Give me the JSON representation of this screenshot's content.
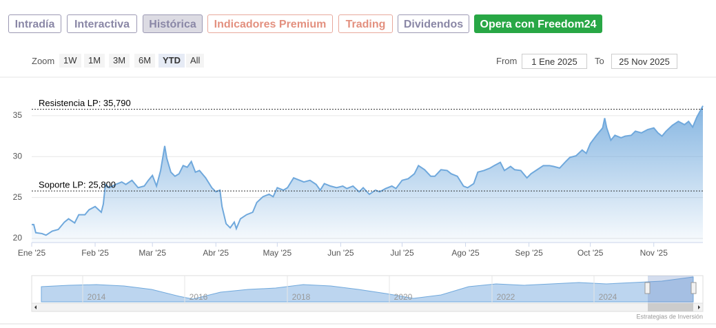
{
  "tabs": [
    "Intradía",
    "Interactiva",
    "Histórica",
    "Indicadores Premium",
    "Trading",
    "Dividendos",
    "Opera con Freedom24"
  ],
  "zoom": {
    "label": "Zoom",
    "buttons": [
      "1W",
      "1M",
      "3M",
      "6M",
      "YTD",
      "All"
    ]
  },
  "range": {
    "from_label": "From",
    "from": "1 Ene 2025",
    "to_label": "To",
    "to": "25 Nov 2025"
  },
  "navigator": {
    "labels": [
      "2014",
      "2016",
      "2018",
      "2020",
      "2022",
      "2024"
    ]
  },
  "credit": "Estrategias de Inversión",
  "chart_data": {
    "type": "area",
    "grid": true,
    "x": [
      0,
      1,
      2,
      5,
      7,
      10,
      13,
      16,
      18,
      21,
      23,
      26,
      28,
      31,
      34,
      35,
      36,
      38,
      41,
      44,
      46,
      49,
      52,
      55,
      57,
      59,
      61,
      63,
      65,
      66,
      68,
      70,
      72,
      74,
      76,
      78,
      80,
      82,
      85,
      88,
      90,
      92,
      93,
      95,
      97,
      99,
      100,
      102,
      105,
      108,
      110,
      113,
      116,
      118,
      120,
      123,
      125,
      128,
      131,
      133,
      136,
      139,
      141,
      143,
      146,
      149,
      152,
      154,
      157,
      160,
      162,
      165,
      168,
      170,
      173,
      176,
      178,
      181,
      184,
      187,
      189,
      192,
      195,
      197,
      200,
      203,
      205,
      208,
      211,
      213,
      216,
      218,
      221,
      224,
      226,
      229,
      231,
      234,
      236,
      239,
      242,
      244,
      247,
      250,
      253,
      255,
      258,
      261,
      263,
      266,
      269,
      271,
      273,
      276,
      279,
      280,
      281,
      283,
      285,
      288,
      290,
      293,
      295,
      298,
      301,
      304,
      306,
      308,
      310,
      313,
      316,
      319,
      321,
      323,
      325,
      328
    ],
    "series": [
      {
        "color": "#6fa8dc",
        "values": [
          21.7,
          21.7,
          20.7,
          20.6,
          20.4,
          20.9,
          21.1,
          22.0,
          22.4,
          21.9,
          22.9,
          22.9,
          23.5,
          23.9,
          23.2,
          24.2,
          26.6,
          26.2,
          26.6,
          26.9,
          26.6,
          27.1,
          26.2,
          26.4,
          27.1,
          27.7,
          26.4,
          28.3,
          31.3,
          29.8,
          28.1,
          27.6,
          27.9,
          28.9,
          28.7,
          29.4,
          28.1,
          28.3,
          27.4,
          26.2,
          25.7,
          25.9,
          23.9,
          21.8,
          21.3,
          22.0,
          21.2,
          22.4,
          22.9,
          23.2,
          24.4,
          25.1,
          25.4,
          25.1,
          26.2,
          25.9,
          26.2,
          27.4,
          27.1,
          26.9,
          27.1,
          26.6,
          25.9,
          26.7,
          26.4,
          26.2,
          26.4,
          26.1,
          26.4,
          25.7,
          26.2,
          25.4,
          25.9,
          25.7,
          26.1,
          26.4,
          26.1,
          27.1,
          27.3,
          27.9,
          28.9,
          28.4,
          27.6,
          27.6,
          28.4,
          28.3,
          27.9,
          27.6,
          26.4,
          26.2,
          26.7,
          28.1,
          28.3,
          28.6,
          28.9,
          29.3,
          28.3,
          28.8,
          28.4,
          28.3,
          27.4,
          27.9,
          28.4,
          28.9,
          28.9,
          28.8,
          28.6,
          29.4,
          29.9,
          30.1,
          30.8,
          30.4,
          31.6,
          32.6,
          33.5,
          34.7,
          33.5,
          32.0,
          32.6,
          32.3,
          32.5,
          32.6,
          33.1,
          32.9,
          33.3,
          33.5,
          32.9,
          32.5,
          33.1,
          33.8,
          34.3,
          33.9,
          34.3,
          33.6,
          34.8,
          36.2
        ]
      }
    ],
    "xlim": [
      0,
      328
    ],
    "xticks": [
      {
        "value": 0,
        "label": "Ene '25"
      },
      {
        "value": 31,
        "label": "Feb '25"
      },
      {
        "value": 59,
        "label": "Mar '25"
      },
      {
        "value": 90,
        "label": "Abr '25"
      },
      {
        "value": 120,
        "label": "May '25"
      },
      {
        "value": 151,
        "label": "Jun '25"
      },
      {
        "value": 181,
        "label": "Jul '25"
      },
      {
        "value": 212,
        "label": "Ago '25"
      },
      {
        "value": 243,
        "label": "Sep '25"
      },
      {
        "value": 273,
        "label": "Oct '25"
      },
      {
        "value": 304,
        "label": "Nov '25"
      }
    ],
    "ylim": [
      19.5,
      39.7
    ],
    "yticks": [
      20,
      25,
      30,
      35
    ],
    "annotations": [
      {
        "label": "Resistencia LP: 35,790",
        "value": 35.79
      },
      {
        "label": "Soporte LP: 25,800",
        "value": 25.8
      }
    ]
  }
}
